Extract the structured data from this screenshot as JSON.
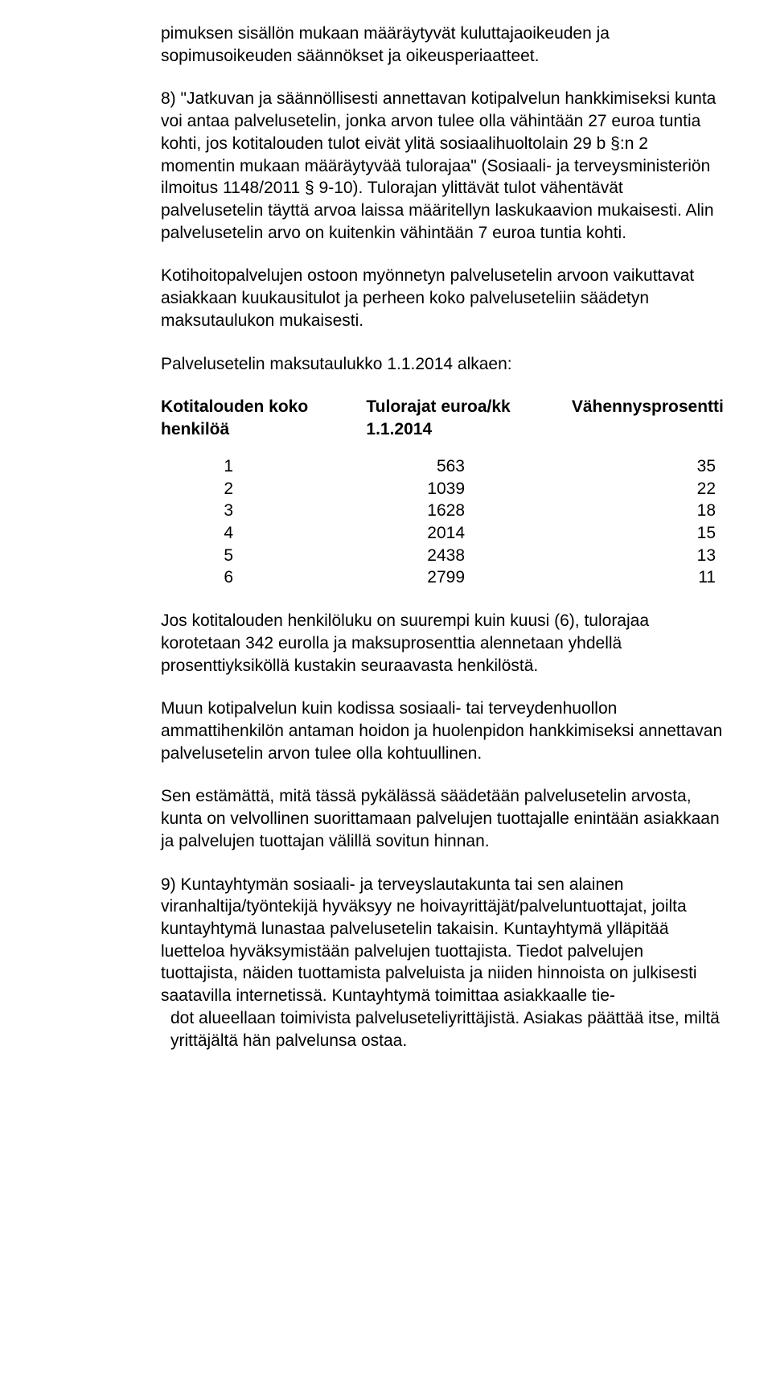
{
  "para1": "pimuksen sisällön mukaan määräytyvät kuluttajaoikeuden ja sopimusoikeuden säännökset ja oikeusperiaatteet.",
  "para2": "8) \"Jatkuvan ja säännöllisesti annettavan kotipalvelun hankkimiseksi kunta voi antaa palvelusetelin, jonka arvon tulee olla vähintään 27 euroa tuntia kohti, jos kotitalouden tulot eivät ylitä sosiaalihuoltolain 29 b §:n 2 momentin mukaan määräytyvää tulorajaa\" (Sosiaali- ja terveysministeriön ilmoitus 1148/2011 § 9-10). Tulorajan ylittävät tulot vähentävät palvelusetelin täyttä arvoa laissa määritellyn laskukaavion mukaisesti. Alin palvelusetelin arvo on kuitenkin vähintään 7 euroa tuntia kohti.",
  "para3": "Kotihoitopalvelujen ostoon myönnetyn palvelusetelin arvoon vaikuttavat asiakkaan kuukausitulot ja perheen koko palveluseteliin säädetyn maksutaulukon mukaisesti.",
  "para4": "Palvelusetelin maksutaulukko 1.1.2014 alkaen:",
  "tableHeader": {
    "c1a": "Kotitalouden koko",
    "c1b": "henkilöä",
    "c2a": "Tulorajat euroa/kk",
    "c2b": "1.1.2014",
    "c3": "Vähennysprosentti"
  },
  "rows": [
    {
      "c1": "1",
      "c2": "563",
      "c3": "35"
    },
    {
      "c1": "2",
      "c2": "1039",
      "c3": "22"
    },
    {
      "c1": "3",
      "c2": "1628",
      "c3": "18"
    },
    {
      "c1": "4",
      "c2": "2014",
      "c3": "15"
    },
    {
      "c1": "5",
      "c2": "2438",
      "c3": "13"
    },
    {
      "c1": "6",
      "c2": "2799",
      "c3": "11"
    }
  ],
  "para5": "Jos kotitalouden henkilöluku on suurempi kuin kuusi (6), tulorajaa korotetaan 342 eurolla ja maksuprosenttia alennetaan yhdellä prosenttiyksiköllä kustakin seuraavasta henkilöstä.",
  "para6": "Muun kotipalvelun kuin kodissa sosiaali- tai terveydenhuollon ammattihenkilön antaman hoidon ja huolenpidon hankkimiseksi annettavan palvelusetelin arvon tulee olla kohtuullinen.",
  "para7": "Sen estämättä, mitä tässä pykälässä säädetään palvelusetelin arvosta, kunta on velvollinen suorittamaan palvelujen tuottajalle enintään asiakkaan ja palvelujen tuottajan välillä sovitun hinnan.",
  "para8": "9) Kuntayhtymän sosiaali- ja terveyslautakunta tai sen alainen viranhaltija/työntekijä hyväksyy ne hoivayrittäjät/palveluntuottajat, joilta kuntayhtymä lunastaa palvelusetelin takaisin. Kuntayhtymä ylläpitää luetteloa hyväksymistään palvelujen tuottajista. Tiedot palvelujen tuottajista, näiden tuottamista palveluista ja niiden hinnoista on julkisesti saatavilla internetissä. Kuntayhtymä toimittaa asiakkaalle tie-",
  "para8b": "dot alueellaan toimivista palveluseteliyrittäjistä. Asiakas päättää itse, miltä yrittäjältä hän palvelunsa ostaa."
}
